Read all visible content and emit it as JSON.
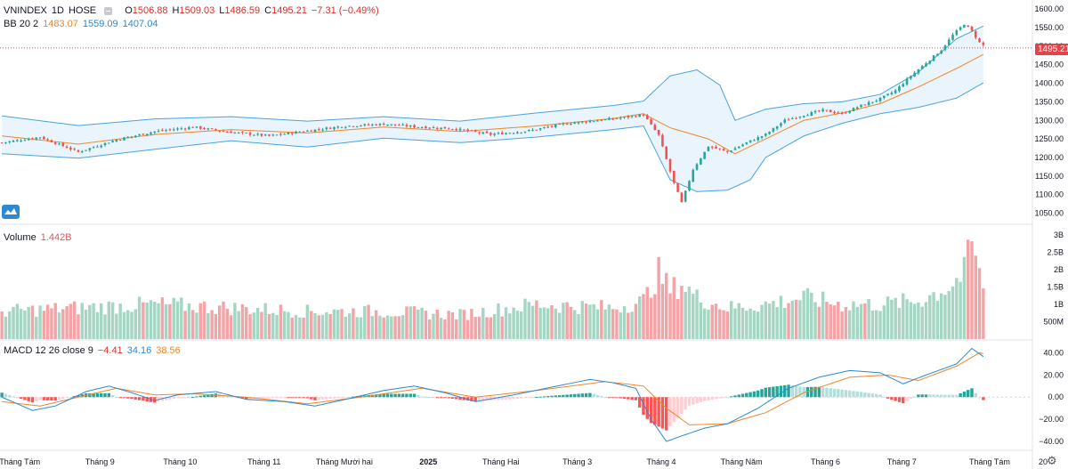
{
  "header": {
    "symbol": "VNINDEX",
    "interval": "1D",
    "exchange": "HOSE",
    "open_label": "O",
    "open": "1506.88",
    "high_label": "H",
    "high": "1509.03",
    "low_label": "L",
    "low": "1486.59",
    "close_label": "C",
    "close": "1495.21",
    "change": "−7.31 (−0.49%)"
  },
  "bb_legend": {
    "name": "BB 20 2",
    "basis": "1483.07",
    "upper": "1559.09",
    "lower": "1407.04"
  },
  "volume_legend": {
    "name": "Volume",
    "value": "1.442B"
  },
  "macd_legend": {
    "name": "MACD 12 26 close 9",
    "hist": "−4.41",
    "macd": "34.16",
    "signal": "38.56"
  },
  "price_badge": "1495.21",
  "colors": {
    "up": "#26a69a",
    "down": "#ef5350",
    "bb_basis": "#f0862a",
    "bb_band": "#4aa3df",
    "vol_up": "#a5d6c4",
    "vol_down": "#f4a3a6",
    "macd_line": "#2a8ad4",
    "signal_line": "#f0862a"
  },
  "chart_data": [
    {
      "type": "candlestick",
      "panel": "price",
      "price_axis_ticks": [
        "1600.00",
        "1550.00",
        "1500.00",
        "1450.00",
        "1400.00",
        "1350.00",
        "1300.00",
        "1250.00",
        "1200.00",
        "1150.00",
        "1100.00",
        "1050.00"
      ],
      "ylim": [
        1020,
        1610
      ],
      "time_axis_labels": [
        "Tháng Tám",
        "Tháng 9",
        "Tháng 10",
        "Tháng 11",
        "Tháng Mười hai",
        "2025",
        "Tháng Hai",
        "Tháng 3",
        "Tháng 4",
        "Tháng Năm",
        "Tháng 6",
        "Tháng 7",
        "Tháng Tám",
        "20"
      ],
      "month_index_positions": [
        0,
        21,
        42,
        64,
        85,
        107,
        126,
        146,
        168,
        189,
        211,
        231,
        254,
        268
      ],
      "bars": 258,
      "close_path": [
        [
          0,
          1240
        ],
        [
          10,
          1255
        ],
        [
          20,
          1215
        ],
        [
          30,
          1248
        ],
        [
          40,
          1270
        ],
        [
          50,
          1282
        ],
        [
          60,
          1268
        ],
        [
          70,
          1258
        ],
        [
          80,
          1272
        ],
        [
          90,
          1285
        ],
        [
          100,
          1290
        ],
        [
          108,
          1283
        ],
        [
          118,
          1278
        ],
        [
          128,
          1262
        ],
        [
          138,
          1272
        ],
        [
          148,
          1292
        ],
        [
          158,
          1302
        ],
        [
          163,
          1308
        ],
        [
          168,
          1315
        ],
        [
          172,
          1260
        ],
        [
          174,
          1195
        ],
        [
          176,
          1130
        ],
        [
          178,
          1078
        ],
        [
          181,
          1168
        ],
        [
          185,
          1230
        ],
        [
          190,
          1215
        ],
        [
          195,
          1240
        ],
        [
          200,
          1262
        ],
        [
          205,
          1300
        ],
        [
          210,
          1315
        ],
        [
          215,
          1327
        ],
        [
          220,
          1318
        ],
        [
          225,
          1340
        ],
        [
          230,
          1358
        ],
        [
          234,
          1380
        ],
        [
          238,
          1420
        ],
        [
          242,
          1455
        ],
        [
          246,
          1490
        ],
        [
          249,
          1530
        ],
        [
          252,
          1560
        ],
        [
          254,
          1540
        ],
        [
          256,
          1510
        ],
        [
          258,
          1495
        ]
      ],
      "bb_basis_path": [
        [
          0,
          1258
        ],
        [
          20,
          1236
        ],
        [
          40,
          1262
        ],
        [
          60,
          1275
        ],
        [
          80,
          1266
        ],
        [
          100,
          1282
        ],
        [
          120,
          1270
        ],
        [
          140,
          1285
        ],
        [
          160,
          1305
        ],
        [
          168,
          1318
        ],
        [
          175,
          1280
        ],
        [
          185,
          1250
        ],
        [
          192,
          1210
        ],
        [
          200,
          1250
        ],
        [
          210,
          1300
        ],
        [
          220,
          1320
        ],
        [
          230,
          1345
        ],
        [
          240,
          1390
        ],
        [
          250,
          1440
        ],
        [
          258,
          1483.07
        ]
      ],
      "bb_upper_path": [
        [
          0,
          1312
        ],
        [
          20,
          1286
        ],
        [
          40,
          1304
        ],
        [
          60,
          1310
        ],
        [
          80,
          1298
        ],
        [
          100,
          1310
        ],
        [
          120,
          1298
        ],
        [
          140,
          1320
        ],
        [
          160,
          1340
        ],
        [
          168,
          1352
        ],
        [
          175,
          1420
        ],
        [
          182,
          1436
        ],
        [
          188,
          1395
        ],
        [
          192,
          1300
        ],
        [
          200,
          1330
        ],
        [
          210,
          1345
        ],
        [
          220,
          1350
        ],
        [
          230,
          1370
        ],
        [
          240,
          1430
        ],
        [
          250,
          1520
        ],
        [
          258,
          1559.09
        ]
      ],
      "bb_lower_path": [
        [
          0,
          1210
        ],
        [
          20,
          1198
        ],
        [
          40,
          1222
        ],
        [
          60,
          1245
        ],
        [
          80,
          1228
        ],
        [
          100,
          1252
        ],
        [
          120,
          1240
        ],
        [
          140,
          1255
        ],
        [
          160,
          1275
        ],
        [
          168,
          1285
        ],
        [
          175,
          1140
        ],
        [
          182,
          1108
        ],
        [
          190,
          1112
        ],
        [
          196,
          1140
        ],
        [
          200,
          1200
        ],
        [
          210,
          1258
        ],
        [
          220,
          1292
        ],
        [
          230,
          1318
        ],
        [
          240,
          1335
        ],
        [
          250,
          1360
        ],
        [
          258,
          1407.04
        ]
      ]
    },
    {
      "type": "bar",
      "panel": "volume",
      "axis_ticks": [
        "3B",
        "2.5B",
        "2B",
        "1.5B",
        "1B",
        "500M"
      ],
      "ylim": [
        0,
        3.05
      ],
      "unit": "B",
      "profile": [
        [
          0,
          0.8
        ],
        [
          20,
          0.9
        ],
        [
          40,
          1.0
        ],
        [
          60,
          0.9
        ],
        [
          80,
          0.8
        ],
        [
          100,
          0.8
        ],
        [
          120,
          0.7
        ],
        [
          140,
          1.0
        ],
        [
          160,
          0.9
        ],
        [
          168,
          1.1
        ],
        [
          172,
          1.9
        ],
        [
          175,
          1.4
        ],
        [
          178,
          1.6
        ],
        [
          182,
          1.2
        ],
        [
          190,
          0.9
        ],
        [
          200,
          1.0
        ],
        [
          210,
          1.2
        ],
        [
          220,
          1.0
        ],
        [
          230,
          1.0
        ],
        [
          240,
          1.1
        ],
        [
          248,
          1.5
        ],
        [
          252,
          1.9
        ],
        [
          254,
          2.8
        ],
        [
          256,
          1.8
        ],
        [
          258,
          1.44
        ]
      ]
    },
    {
      "type": "line",
      "panel": "macd",
      "axis_ticks": [
        "40.00",
        "20.00",
        "0.00",
        "−20.00",
        "−40.00"
      ],
      "ylim": [
        -48,
        50
      ],
      "macd_path": [
        [
          0,
          0
        ],
        [
          8,
          -12
        ],
        [
          14,
          -8
        ],
        [
          22,
          5
        ],
        [
          28,
          10
        ],
        [
          34,
          4
        ],
        [
          40,
          -3
        ],
        [
          46,
          2
        ],
        [
          56,
          5
        ],
        [
          64,
          -2
        ],
        [
          74,
          -4
        ],
        [
          82,
          -8
        ],
        [
          90,
          -2
        ],
        [
          100,
          6
        ],
        [
          108,
          10
        ],
        [
          116,
          4
        ],
        [
          124,
          -4
        ],
        [
          134,
          2
        ],
        [
          144,
          9
        ],
        [
          154,
          16
        ],
        [
          160,
          13
        ],
        [
          166,
          8
        ],
        [
          170,
          -20
        ],
        [
          174,
          -40
        ],
        [
          178,
          -35
        ],
        [
          184,
          -28
        ],
        [
          190,
          -24
        ],
        [
          198,
          -10
        ],
        [
          206,
          8
        ],
        [
          214,
          18
        ],
        [
          222,
          24
        ],
        [
          230,
          22
        ],
        [
          236,
          12
        ],
        [
          242,
          20
        ],
        [
          250,
          30
        ],
        [
          254,
          44
        ],
        [
          258,
          34.16
        ]
      ],
      "signal_path": [
        [
          0,
          -4
        ],
        [
          10,
          -8
        ],
        [
          20,
          0
        ],
        [
          30,
          8
        ],
        [
          40,
          2
        ],
        [
          50,
          3
        ],
        [
          64,
          0
        ],
        [
          80,
          -6
        ],
        [
          94,
          0
        ],
        [
          110,
          8
        ],
        [
          124,
          0
        ],
        [
          140,
          6
        ],
        [
          158,
          14
        ],
        [
          168,
          10
        ],
        [
          174,
          -10
        ],
        [
          180,
          -25
        ],
        [
          190,
          -24
        ],
        [
          200,
          -14
        ],
        [
          210,
          4
        ],
        [
          222,
          18
        ],
        [
          232,
          20
        ],
        [
          240,
          15
        ],
        [
          250,
          28
        ],
        [
          256,
          40
        ],
        [
          258,
          38.56
        ]
      ]
    }
  ]
}
